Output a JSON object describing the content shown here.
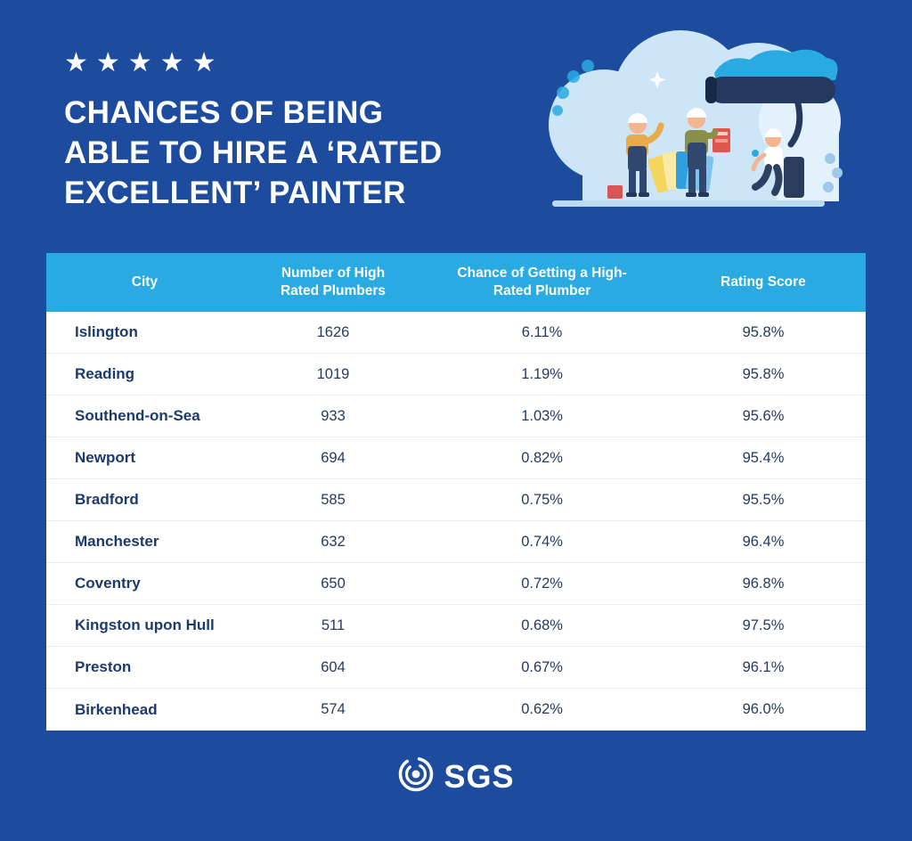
{
  "page": {
    "background_color": "#1d4b9e",
    "accent_color": "#29aae2"
  },
  "header": {
    "stars": "★★★★★",
    "title_lines": [
      "CHANCES OF BEING",
      "ABLE TO HIRE A ‘RATED",
      "EXCELLENT’ PAINTER"
    ]
  },
  "chart_data": {
    "type": "table",
    "title": "Chances of Being Able to Hire a ‘Rated Excellent’ Painter",
    "columns": [
      "City",
      "Number of High Rated Plumbers",
      "Chance of Getting a High-Rated Plumber",
      "Rating Score"
    ],
    "rows": [
      [
        "Islington",
        "1626",
        "6.11%",
        "95.8%"
      ],
      [
        "Reading",
        "1019",
        "1.19%",
        "95.8%"
      ],
      [
        "Southend-on-Sea",
        "933",
        "1.03%",
        "95.6%"
      ],
      [
        "Newport",
        "694",
        "0.82%",
        "95.4%"
      ],
      [
        "Bradford",
        "585",
        "0.75%",
        "95.5%"
      ],
      [
        "Manchester",
        "632",
        "0.74%",
        "96.4%"
      ],
      [
        "Coventry",
        "650",
        "0.72%",
        "96.8%"
      ],
      [
        "Kingston upon Hull",
        "511",
        "0.68%",
        "97.5%"
      ],
      [
        "Preston",
        "604",
        "0.67%",
        "96.1%"
      ],
      [
        "Birkenhead",
        "574",
        "0.62%",
        "96.0%"
      ]
    ]
  },
  "footer": {
    "brand": "SGS"
  }
}
